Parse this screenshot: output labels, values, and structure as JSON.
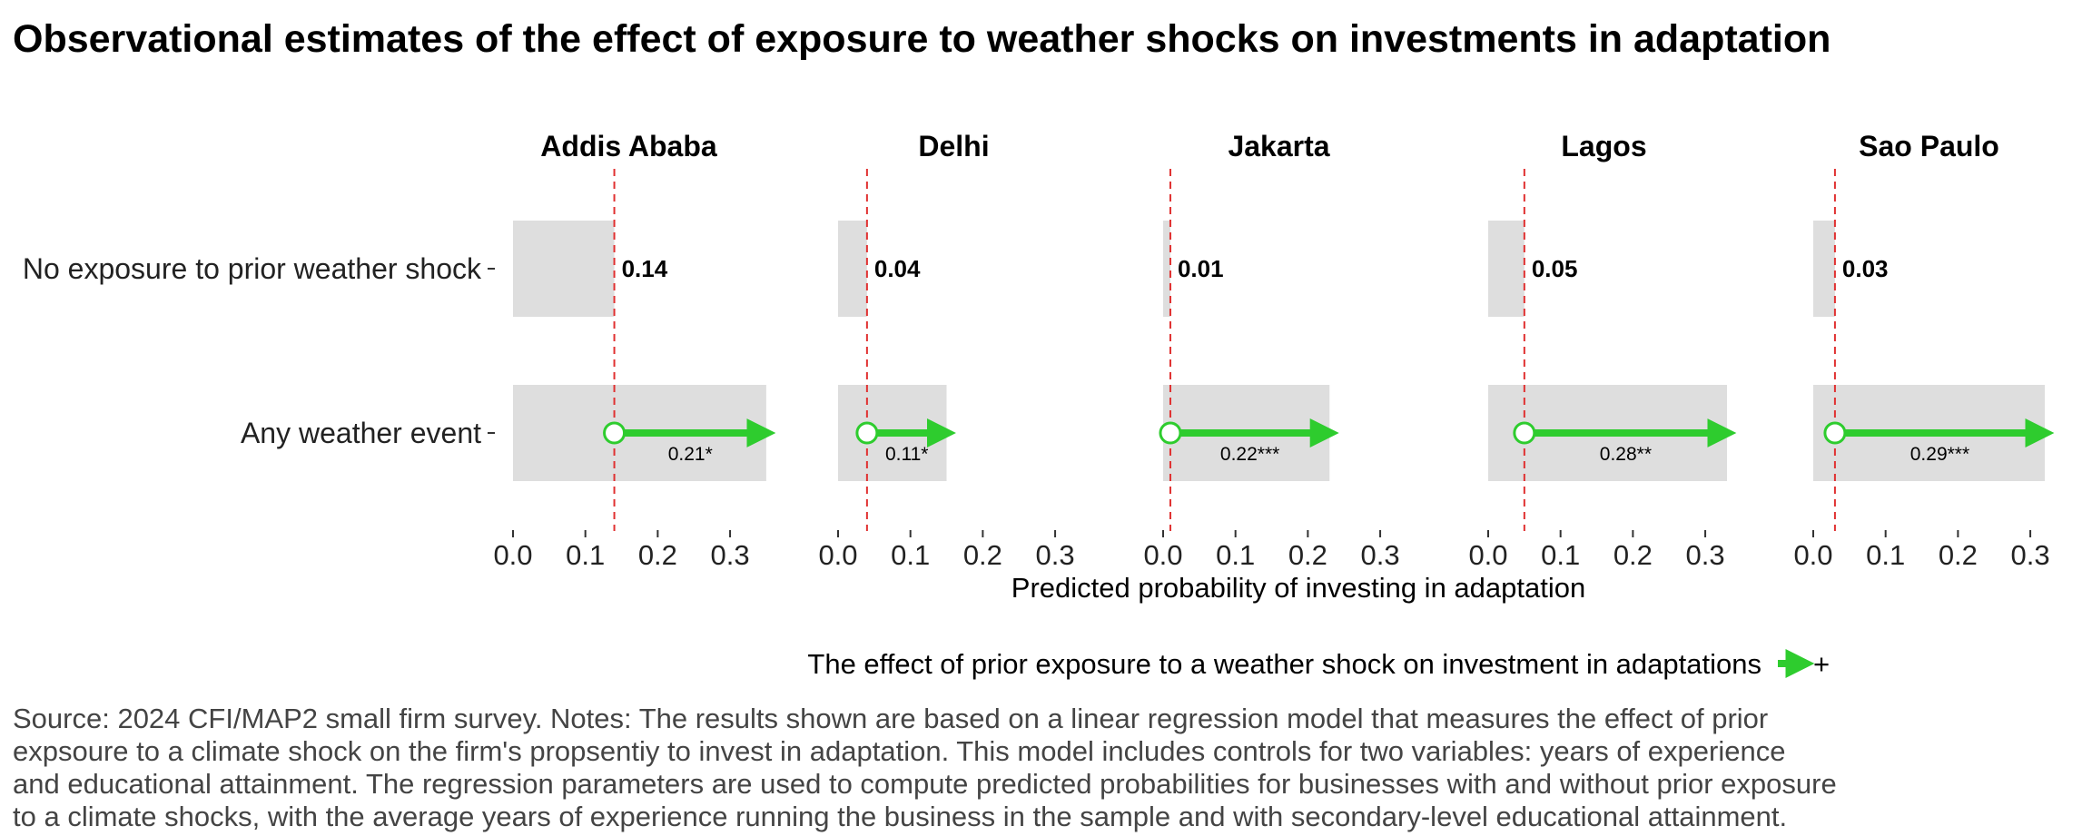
{
  "chart_data": {
    "type": "bar",
    "title": "Observational estimates of the effect of exposure to weather shocks on investments in adaptation",
    "xlabel": "Predicted probability of investing in adaptation",
    "xlim": [
      0,
      0.32
    ],
    "x_ticks": [
      "0.0",
      "0.1",
      "0.2",
      "0.3"
    ],
    "rows": [
      "No exposure to prior weather shock",
      "Any weather event"
    ],
    "grid": false,
    "panels": [
      {
        "city": "Addis Ababa",
        "no_exposure": 0.14,
        "no_exposure_label": "0.14",
        "any_event": 0.35,
        "effect_label": "0.21*"
      },
      {
        "city": "Delhi",
        "no_exposure": 0.04,
        "no_exposure_label": "0.04",
        "any_event": 0.15,
        "effect_label": "0.11*"
      },
      {
        "city": "Jakarta",
        "no_exposure": 0.01,
        "no_exposure_label": "0.01",
        "any_event": 0.23,
        "effect_label": "0.22***"
      },
      {
        "city": "Lagos",
        "no_exposure": 0.05,
        "no_exposure_label": "0.05",
        "any_event": 0.33,
        "effect_label": "0.28**"
      },
      {
        "city": "Sao Paulo",
        "no_exposure": 0.03,
        "no_exposure_label": "0.03",
        "any_event": 0.32,
        "effect_label": "0.29***"
      }
    ],
    "legend": {
      "position": "bottom",
      "title": "The effect of prior exposure to a weather shock on investment in adaptations",
      "entry": "+"
    },
    "colors": {
      "bar": "#dedede",
      "arrow": "#2ecc2e",
      "baseline": "#e03030"
    }
  },
  "caption": [
    "Source: 2024 CFI/MAP2 small firm survey. Notes: The results shown are based on a linear regression model that measures the effect of prior",
    "expsoure to a climate shock on the firm's propsentiy to invest in adaptation. This model includes controls for two variables: years of experience",
    "and educational attainment. The regression parameters are used to compute predicted probabilities for businesses with and without prior exposure",
    "to a climate shocks, with the average years of experience running the business in the sample and with secondary-level educational attainment."
  ]
}
